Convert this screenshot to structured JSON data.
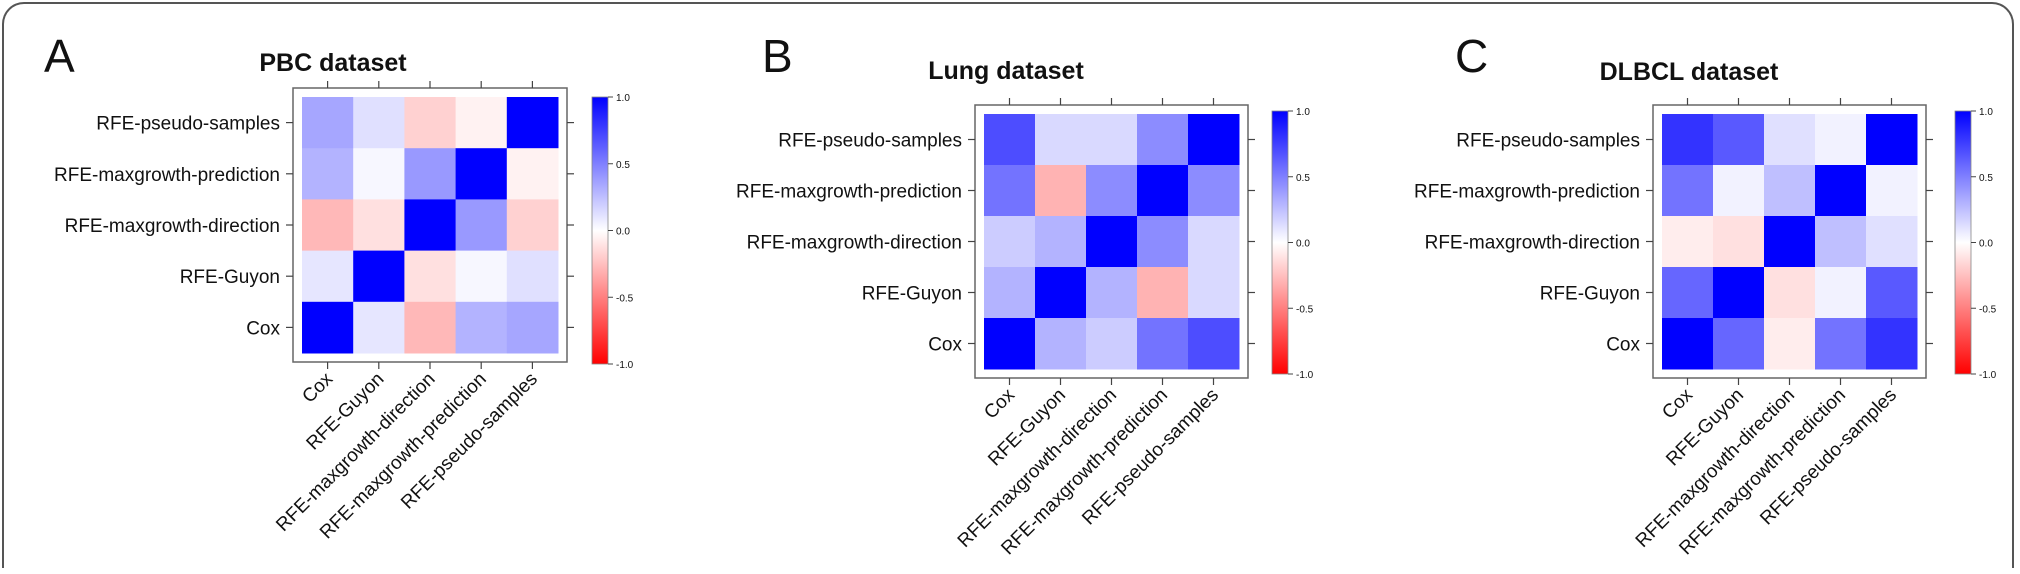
{
  "figure": {
    "colors": {
      "negative": "#ff0000",
      "zero": "#ffffff",
      "positive": "#0000ff",
      "frame": "#555555"
    }
  },
  "chart_data": [
    {
      "type": "heatmap",
      "panel_letter": "A",
      "title": "PBC dataset",
      "rows": [
        "RFE-pseudo-samples",
        "RFE-maxgrowth-prediction",
        "RFE-maxgrowth-direction",
        "RFE-Guyon",
        "Cox"
      ],
      "columns": [
        "Cox",
        "RFE-Guyon",
        "RFE-maxgrowth-direction",
        "RFE-maxgrowth-prediction",
        "RFE-pseudo-samples"
      ],
      "values": [
        [
          0.35,
          0.12,
          -0.18,
          -0.05,
          1.0
        ],
        [
          0.3,
          0.03,
          0.4,
          1.0,
          -0.05
        ],
        [
          -0.28,
          -0.12,
          1.0,
          0.4,
          -0.18
        ],
        [
          0.1,
          1.0,
          -0.12,
          0.03,
          0.12
        ],
        [
          1.0,
          0.1,
          -0.28,
          0.3,
          0.35
        ]
      ],
      "legend": {
        "min": -1.0,
        "max": 1.0,
        "ticks": [
          "1.0",
          "0.5",
          "0.0",
          "-0.5",
          "-1.0"
        ]
      }
    },
    {
      "type": "heatmap",
      "panel_letter": "B",
      "title": "Lung dataset",
      "rows": [
        "RFE-pseudo-samples",
        "RFE-maxgrowth-prediction",
        "RFE-maxgrowth-direction",
        "RFE-Guyon",
        "Cox"
      ],
      "columns": [
        "Cox",
        "RFE-Guyon",
        "RFE-maxgrowth-direction",
        "RFE-maxgrowth-prediction",
        "RFE-pseudo-samples"
      ],
      "values": [
        [
          0.7,
          0.15,
          0.15,
          0.45,
          1.0
        ],
        [
          0.55,
          -0.3,
          0.45,
          1.0,
          0.45
        ],
        [
          0.2,
          0.3,
          1.0,
          0.45,
          0.15
        ],
        [
          0.3,
          1.0,
          0.3,
          -0.3,
          0.15
        ],
        [
          1.0,
          0.3,
          0.2,
          0.55,
          0.7
        ]
      ],
      "legend": {
        "min": -1.0,
        "max": 1.0,
        "ticks": [
          "1.0",
          "0.5",
          "0.0",
          "-0.5",
          "-1.0"
        ]
      }
    },
    {
      "type": "heatmap",
      "panel_letter": "C",
      "title": "DLBCL dataset",
      "rows": [
        "RFE-pseudo-samples",
        "RFE-maxgrowth-prediction",
        "RFE-maxgrowth-direction",
        "RFE-Guyon",
        "Cox"
      ],
      "columns": [
        "Cox",
        "RFE-Guyon",
        "RFE-maxgrowth-direction",
        "RFE-maxgrowth-prediction",
        "RFE-pseudo-samples"
      ],
      "values": [
        [
          0.8,
          0.65,
          0.12,
          0.05,
          1.0
        ],
        [
          0.55,
          0.05,
          0.25,
          1.0,
          0.05
        ],
        [
          -0.07,
          -0.12,
          1.0,
          0.25,
          0.12
        ],
        [
          0.6,
          1.0,
          -0.12,
          0.05,
          0.65
        ],
        [
          1.0,
          0.6,
          -0.07,
          0.55,
          0.8
        ]
      ],
      "legend": {
        "min": -1.0,
        "max": 1.0,
        "ticks": [
          "1.0",
          "0.5",
          "0.0",
          "-0.5",
          "-1.0"
        ]
      }
    }
  ]
}
